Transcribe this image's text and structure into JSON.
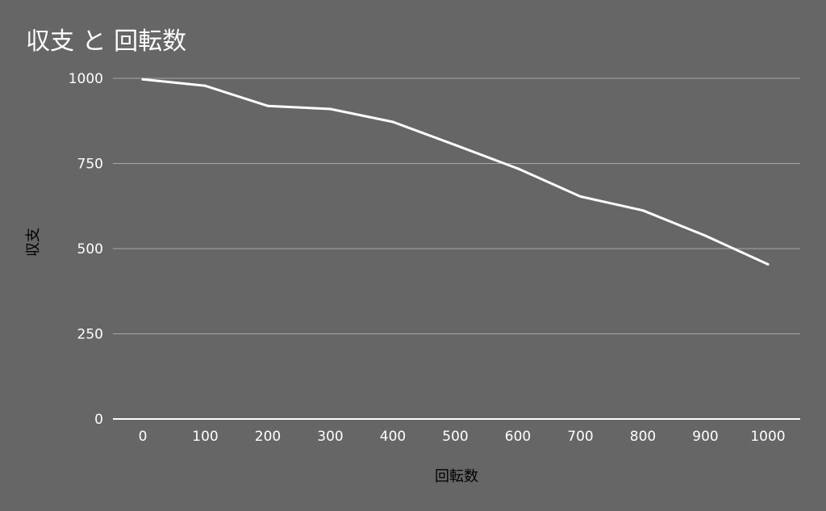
{
  "chart_data": {
    "type": "line",
    "title": "収支 と 回転数",
    "xlabel": "回転数",
    "ylabel": "収支",
    "x": [
      0,
      100,
      200,
      300,
      400,
      500,
      600,
      700,
      800,
      900,
      1000
    ],
    "series": [
      {
        "values": [
          997,
          978,
          919,
          910,
          872,
          804,
          735,
          653,
          612,
          538,
          454
        ]
      }
    ],
    "x_ticks": [
      "0",
      "100",
      "200",
      "300",
      "400",
      "500",
      "600",
      "700",
      "800",
      "900",
      "1000"
    ],
    "y_ticks": [
      "0",
      "250",
      "500",
      "750",
      "1000"
    ],
    "ylim": [
      0,
      1000
    ],
    "grid": true,
    "legend": "none",
    "colors": {
      "background": "#666666",
      "line": "#ffffff",
      "gridline": "#a6a6a6",
      "axis": "#ffffff",
      "axis_title": "#000000"
    }
  }
}
